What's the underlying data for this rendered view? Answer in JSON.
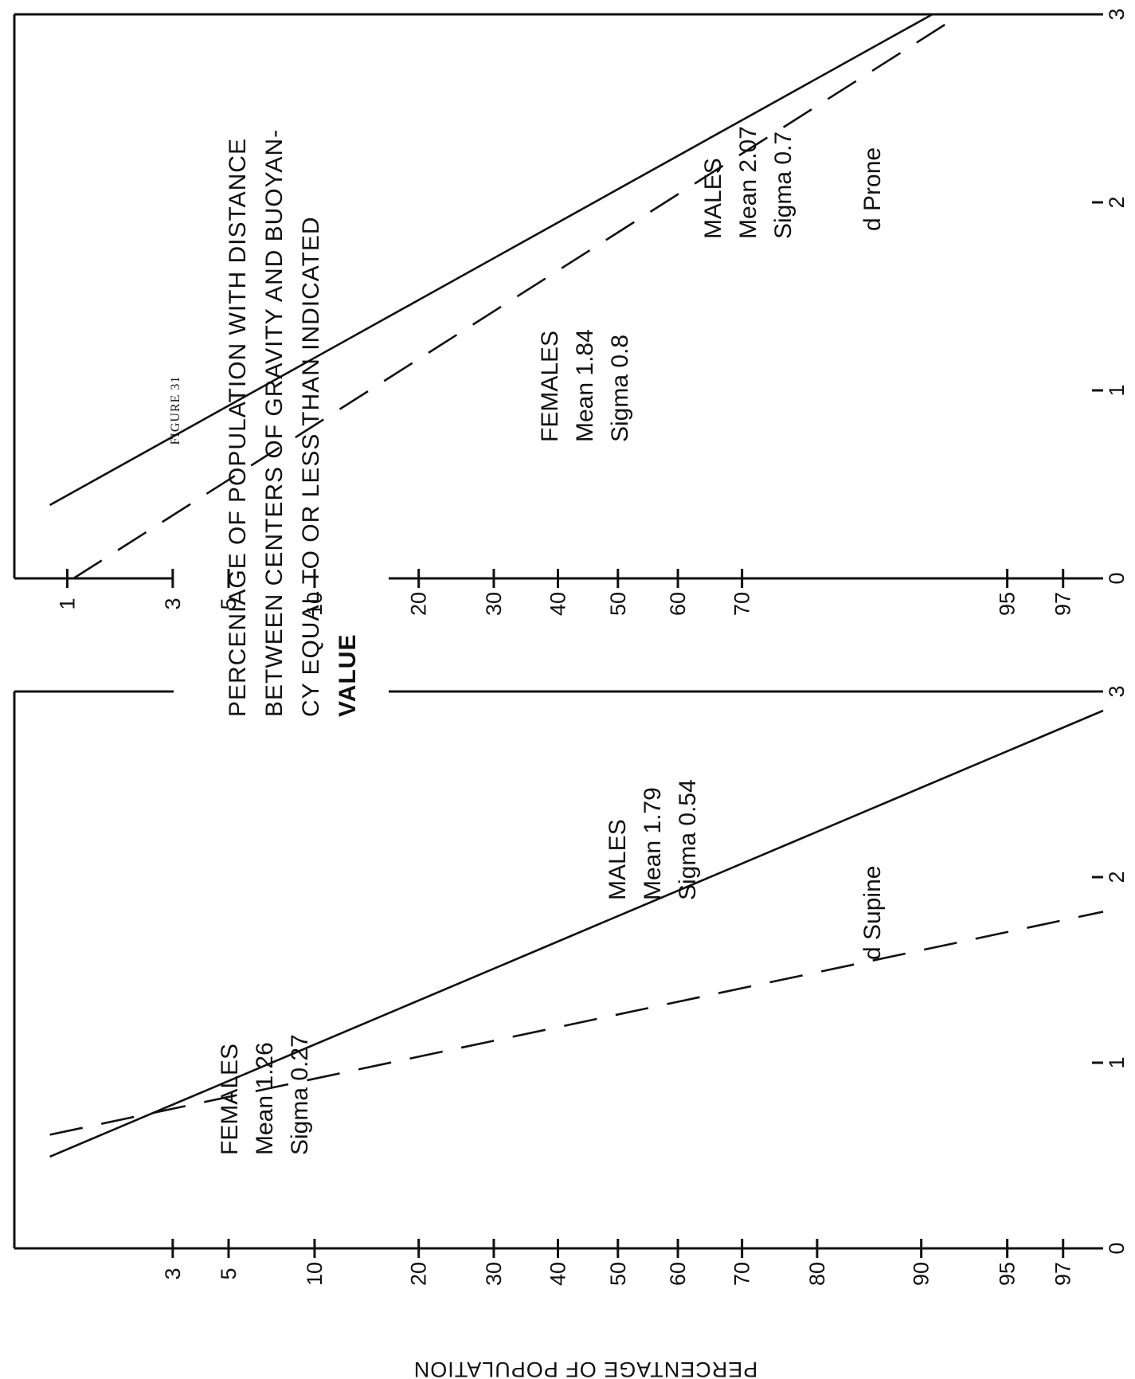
{
  "figure_label": "FIGURE 31",
  "title_lines": [
    "PERCENIAGE OF POPULATION WITH DISTANCE",
    "BETWEEN CENTERS OF GRAVITY AND BUOYAN-",
    "CY EQUAL TO OR LESS THAN INDICATED",
    "VALUE"
  ],
  "y_axis_title": "PERCENTAGE OF POPULATION",
  "chart_data": [
    {
      "type": "line",
      "panel": "supine",
      "xlabel": "d Supine",
      "xlim": [
        0,
        3
      ],
      "x_ticks": [
        0,
        1,
        2,
        3
      ],
      "x_tick_labels": [
        "0",
        "1",
        "2",
        "3"
      ],
      "y_scale": "normal-probability",
      "y_ticks": [
        3,
        5,
        10,
        20,
        30,
        40,
        50,
        60,
        70,
        80,
        90,
        95,
        97
      ],
      "y_tick_labels": [
        "3",
        "5",
        "10",
        "20",
        "30",
        "40",
        "50",
        "60",
        "70",
        "80",
        "90",
        "95",
        "97"
      ],
      "series": [
        {
          "name": "MALES",
          "style": "solid",
          "label_lines": [
            "MALES",
            "Mean 1.79",
            "Sigma 0.54"
          ],
          "mean": 1.79,
          "sigma": 0.54,
          "points": [
            [
              0.3,
              0.5
            ],
            [
              1.0,
              7
            ],
            [
              2.0,
              65
            ],
            [
              2.95,
              98.3
            ]
          ]
        },
        {
          "name": "FEMALES",
          "style": "dashed",
          "label_lines": [
            "FEMALES",
            "Mean 1.26",
            "Sigma 0.27"
          ],
          "mean": 1.26,
          "sigma": 0.27,
          "points": [
            [
              0.62,
              1
            ],
            [
              1.0,
              16
            ],
            [
              1.5,
              81
            ],
            [
              1.87,
              99
            ]
          ]
        }
      ]
    },
    {
      "type": "line",
      "panel": "prone",
      "xlabel": "d Prone",
      "xlim": [
        0,
        3
      ],
      "x_ticks": [
        0,
        1,
        2,
        3
      ],
      "x_tick_labels": [
        "0",
        "1",
        "2",
        "3"
      ],
      "y_scale": "normal-probability",
      "y_ticks": [
        1,
        3,
        5,
        10,
        20,
        30,
        40,
        50,
        60,
        70,
        95,
        97
      ],
      "y_tick_labels": [
        "1",
        "3",
        "5",
        "10",
        "20",
        "30",
        "40",
        "50",
        "60",
        "70",
        "95",
        "97"
      ],
      "series": [
        {
          "name": "MALES",
          "style": "solid",
          "label_lines": [
            "MALES",
            "Mean 2.07",
            "Sigma 0.7"
          ],
          "mean": 2.07,
          "sigma": 0.7,
          "points": [
            [
              0.45,
              1
            ],
            [
              1.0,
              6
            ],
            [
              2.0,
              46
            ],
            [
              3.0,
              91
            ]
          ]
        },
        {
          "name": "FEMALES",
          "style": "dashed",
          "label_lines": [
            "FEMALES",
            "Mean 1.84",
            "Sigma 0.8"
          ],
          "mean": 1.84,
          "sigma": 0.8,
          "points": [
            [
              0.15,
              1
            ],
            [
              1.0,
              15
            ],
            [
              2.0,
              58
            ],
            [
              3.0,
              93
            ]
          ]
        }
      ]
    }
  ]
}
